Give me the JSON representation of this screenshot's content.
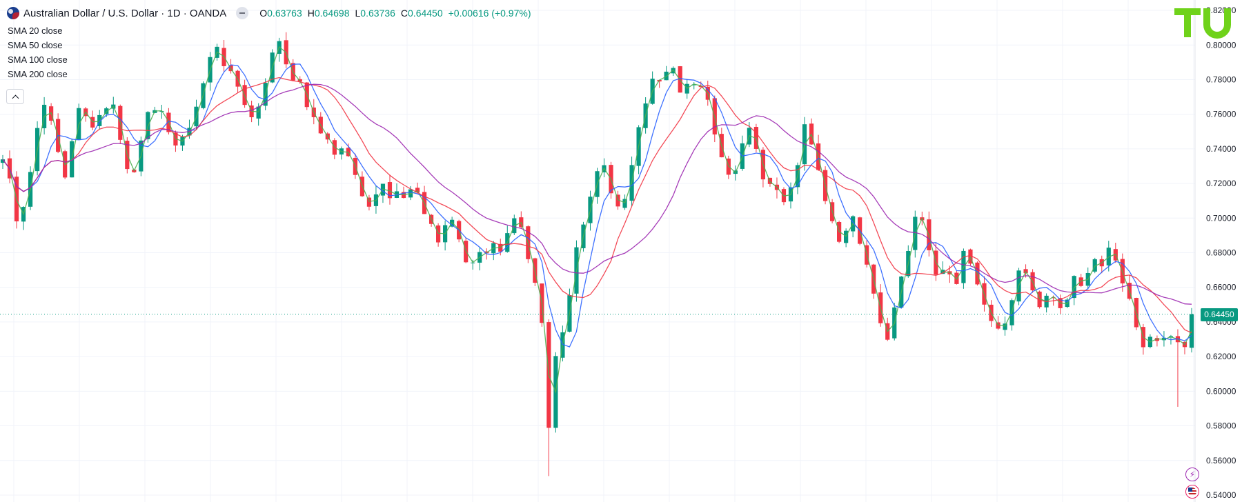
{
  "header": {
    "title": "Australian Dollar / U.S. Dollar · 1D · OANDA",
    "open_label": "O",
    "open": "0.63763",
    "high_label": "H",
    "high": "0.64698",
    "low_label": "L",
    "low": "0.63736",
    "close_label": "C",
    "close": "0.64450",
    "change": "+0.00616 (+0.97%)"
  },
  "indicators": [
    "SMA 20 close",
    "SMA 50 close",
    "SMA 100 close",
    "SMA 200 close"
  ],
  "colors": {
    "up": "#089981",
    "down": "#f23645",
    "sma20": "#4caf50",
    "sma50": "#2962ff",
    "sma100": "#f23645",
    "sma200": "#9c27b0",
    "logo": "#6fd21a",
    "grid": "#f0f3fa"
  },
  "icons": {
    "lightning": "lightning-icon",
    "us_flag": "us-flag-icon",
    "collapse": "chevron-up-icon"
  },
  "chart_data": {
    "type": "candlestick",
    "symbol": "AUDUSD",
    "interval": "1D",
    "current_price": 0.6445,
    "current_price_label": "0.64450",
    "y_ticks": [
      "0.82000",
      "0.80000",
      "0.78000",
      "0.76000",
      "0.74000",
      "0.72000",
      "0.70000",
      "0.68000",
      "0.66000",
      "0.64000",
      "0.62000",
      "0.60000",
      "0.58000",
      "0.56000",
      "0.54000"
    ],
    "ylim": [
      0.536,
      0.826
    ],
    "grid": true,
    "close_path": [
      [
        0,
        0.734
      ],
      [
        0.8,
        0.726
      ],
      [
        1.5,
        0.714
      ],
      [
        2.2,
        0.695
      ],
      [
        3,
        0.708
      ],
      [
        3.8,
        0.721
      ],
      [
        4.5,
        0.742
      ],
      [
        5.2,
        0.756
      ],
      [
        6,
        0.768
      ],
      [
        6.8,
        0.758
      ],
      [
        7.5,
        0.744
      ],
      [
        8.3,
        0.734
      ],
      [
        9,
        0.724
      ],
      [
        9.8,
        0.742
      ],
      [
        10.5,
        0.755
      ],
      [
        11.3,
        0.766
      ],
      [
        12,
        0.758
      ],
      [
        12.8,
        0.752
      ],
      [
        13.5,
        0.762
      ],
      [
        14.3,
        0.758
      ],
      [
        15,
        0.765
      ],
      [
        15.8,
        0.768
      ],
      [
        16.5,
        0.756
      ],
      [
        17.3,
        0.742
      ],
      [
        18,
        0.728
      ],
      [
        18.8,
        0.722
      ],
      [
        19.5,
        0.738
      ],
      [
        20.3,
        0.752
      ],
      [
        21,
        0.764
      ],
      [
        21.8,
        0.758
      ],
      [
        22.5,
        0.764
      ],
      [
        23.3,
        0.756
      ],
      [
        24,
        0.752
      ],
      [
        24.8,
        0.744
      ],
      [
        25.5,
        0.738
      ],
      [
        26.3,
        0.748
      ],
      [
        27,
        0.754
      ],
      [
        27.8,
        0.762
      ],
      [
        28.5,
        0.772
      ],
      [
        29.3,
        0.781
      ],
      [
        30,
        0.792
      ],
      [
        30.8,
        0.802
      ],
      [
        31.5,
        0.796
      ],
      [
        32.3,
        0.786
      ],
      [
        33,
        0.782
      ],
      [
        33.8,
        0.778
      ],
      [
        34.5,
        0.772
      ],
      [
        35.3,
        0.764
      ],
      [
        36,
        0.758
      ],
      [
        36.8,
        0.762
      ],
      [
        37.5,
        0.774
      ],
      [
        38.3,
        0.784
      ],
      [
        39,
        0.794
      ],
      [
        39.8,
        0.806
      ],
      [
        40.5,
        0.796
      ],
      [
        41.3,
        0.786
      ],
      [
        42,
        0.782
      ],
      [
        42.8,
        0.778
      ],
      [
        43.5,
        0.772
      ],
      [
        44.3,
        0.762
      ],
      [
        45,
        0.756
      ],
      [
        45.8,
        0.748
      ],
      [
        46.5,
        0.752
      ],
      [
        47.3,
        0.744
      ],
      [
        48,
        0.736
      ],
      [
        48.8,
        0.742
      ],
      [
        49.5,
        0.738
      ],
      [
        50.3,
        0.732
      ],
      [
        51,
        0.724
      ],
      [
        51.8,
        0.716
      ],
      [
        52.5,
        0.712
      ],
      [
        53.3,
        0.706
      ],
      [
        54,
        0.714
      ],
      [
        54.8,
        0.724
      ],
      [
        55.5,
        0.718
      ],
      [
        56.3,
        0.712
      ],
      [
        57,
        0.716
      ],
      [
        57.8,
        0.71
      ],
      [
        58.5,
        0.712
      ],
      [
        59.3,
        0.718
      ],
      [
        60,
        0.712
      ],
      [
        60.8,
        0.704
      ],
      [
        61.5,
        0.702
      ],
      [
        62.3,
        0.694
      ],
      [
        63,
        0.686
      ],
      [
        63.8,
        0.694
      ],
      [
        64.5,
        0.702
      ],
      [
        65.3,
        0.694
      ],
      [
        66,
        0.688
      ],
      [
        66.8,
        0.676
      ],
      [
        67.5,
        0.672
      ],
      [
        68.3,
        0.678
      ],
      [
        69,
        0.682
      ],
      [
        69.8,
        0.676
      ],
      [
        70.5,
        0.684
      ],
      [
        71.3,
        0.69
      ],
      [
        72,
        0.682
      ],
      [
        72.8,
        0.688
      ],
      [
        73.5,
        0.694
      ],
      [
        74.3,
        0.7
      ],
      [
        75,
        0.692
      ],
      [
        75.8,
        0.676
      ],
      [
        76.5,
        0.668
      ],
      [
        77.3,
        0.656
      ],
      [
        78,
        0.638
      ],
      [
        78.5,
        0.6
      ],
      [
        79,
        0.578
      ],
      [
        79.5,
        0.6
      ],
      [
        80,
        0.62
      ],
      [
        80.8,
        0.634
      ],
      [
        81.5,
        0.644
      ],
      [
        82.3,
        0.664
      ],
      [
        83,
        0.684
      ],
      [
        83.8,
        0.694
      ],
      [
        84.5,
        0.708
      ],
      [
        85.3,
        0.716
      ],
      [
        86,
        0.726
      ],
      [
        86.8,
        0.732
      ],
      [
        87.5,
        0.722
      ],
      [
        88.3,
        0.712
      ],
      [
        89,
        0.704
      ],
      [
        89.8,
        0.71
      ],
      [
        90.5,
        0.724
      ],
      [
        91.3,
        0.736
      ],
      [
        92,
        0.752
      ],
      [
        92.8,
        0.762
      ],
      [
        93.5,
        0.778
      ],
      [
        94.3,
        0.786
      ],
      [
        95,
        0.776
      ],
      [
        95.8,
        0.782
      ],
      [
        96.5,
        0.792
      ],
      [
        97.3,
        0.78
      ],
      [
        98,
        0.772
      ],
      [
        98.8,
        0.776
      ],
      [
        99.5,
        0.782
      ],
      [
        100.3,
        0.778
      ],
      [
        101,
        0.774
      ],
      [
        101.8,
        0.77
      ],
      [
        102.5,
        0.756
      ],
      [
        103.3,
        0.746
      ],
      [
        104,
        0.738
      ],
      [
        104.8,
        0.73
      ],
      [
        105.5,
        0.72
      ],
      [
        106.3,
        0.73
      ],
      [
        107,
        0.742
      ],
      [
        107.8,
        0.754
      ],
      [
        108.5,
        0.744
      ],
      [
        109.3,
        0.734
      ],
      [
        110,
        0.724
      ],
      [
        110.8,
        0.716
      ],
      [
        111.5,
        0.722
      ],
      [
        112.3,
        0.716
      ],
      [
        113,
        0.712
      ],
      [
        113.8,
        0.718
      ],
      [
        114.5,
        0.726
      ],
      [
        115.3,
        0.738
      ],
      [
        116,
        0.754
      ],
      [
        116.8,
        0.744
      ],
      [
        117.5,
        0.732
      ],
      [
        118.3,
        0.722
      ],
      [
        119,
        0.712
      ],
      [
        119.8,
        0.7
      ],
      [
        120.5,
        0.694
      ],
      [
        121.3,
        0.686
      ],
      [
        122,
        0.694
      ],
      [
        122.8,
        0.704
      ],
      [
        123.5,
        0.694
      ],
      [
        124.3,
        0.684
      ],
      [
        125,
        0.674
      ],
      [
        125.8,
        0.662
      ],
      [
        126.5,
        0.648
      ],
      [
        127.3,
        0.636
      ],
      [
        128,
        0.628
      ],
      [
        128.8,
        0.646
      ],
      [
        129.5,
        0.662
      ],
      [
        130.3,
        0.672
      ],
      [
        131,
        0.684
      ],
      [
        131.8,
        0.696
      ],
      [
        132.5,
        0.71
      ],
      [
        133.3,
        0.696
      ],
      [
        134,
        0.682
      ],
      [
        134.8,
        0.672
      ],
      [
        135.5,
        0.664
      ],
      [
        136.3,
        0.674
      ],
      [
        137,
        0.668
      ],
      [
        137.8,
        0.662
      ],
      [
        138.5,
        0.672
      ],
      [
        139.3,
        0.684
      ],
      [
        140,
        0.674
      ],
      [
        140.8,
        0.662
      ],
      [
        141.5,
        0.656
      ],
      [
        142.3,
        0.648
      ],
      [
        143,
        0.638
      ],
      [
        143.8,
        0.636
      ],
      [
        144.5,
        0.632
      ],
      [
        145.3,
        0.642
      ],
      [
        146,
        0.654
      ],
      [
        146.8,
        0.666
      ],
      [
        147.5,
        0.682
      ],
      [
        148.3,
        0.664
      ],
      [
        149,
        0.656
      ],
      [
        149.8,
        0.65
      ],
      [
        150.5,
        0.654
      ],
      [
        151.3,
        0.66
      ],
      [
        152,
        0.656
      ],
      [
        152.8,
        0.648
      ],
      [
        153.5,
        0.652
      ],
      [
        154.3,
        0.658
      ],
      [
        155,
        0.666
      ],
      [
        155.8,
        0.66
      ],
      [
        156.5,
        0.664
      ],
      [
        157.3,
        0.672
      ],
      [
        158,
        0.676
      ],
      [
        158.8,
        0.668
      ],
      [
        159.5,
        0.674
      ],
      [
        160.3,
        0.688
      ],
      [
        161,
        0.676
      ],
      [
        161.8,
        0.668
      ],
      [
        162.5,
        0.656
      ],
      [
        163.3,
        0.648
      ],
      [
        164,
        0.636
      ],
      [
        164.8,
        0.626
      ],
      [
        165.5,
        0.624
      ],
      [
        166.3,
        0.632
      ],
      [
        167,
        0.628
      ],
      [
        167.8,
        0.63
      ],
      [
        168.5,
        0.634
      ],
      [
        169.3,
        0.626
      ],
      [
        170,
        0.626
      ],
      [
        170.5,
        0.602
      ],
      [
        171,
        0.626
      ],
      [
        171.8,
        0.636
      ],
      [
        172.5,
        0.6445
      ]
    ],
    "candle_count": 173,
    "seed": 7,
    "series": [
      {
        "name": "SMA 20 close",
        "period": 20,
        "color": "#4caf50"
      },
      {
        "name": "SMA 50 close",
        "period": 50,
        "color": "#2962ff"
      },
      {
        "name": "SMA 100 close",
        "period": 100,
        "color": "#f23645"
      },
      {
        "name": "SMA 200 close",
        "period": 200,
        "color": "#9c27b0"
      }
    ]
  }
}
